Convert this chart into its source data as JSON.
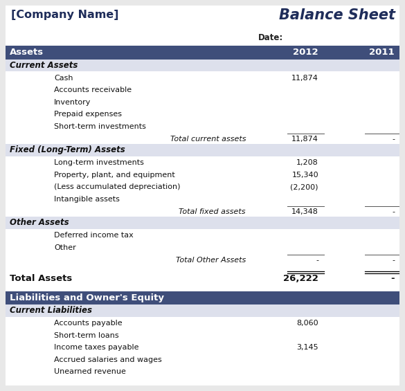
{
  "company_name": "[Company Name]",
  "title": "Balance Sheet",
  "date_label": "Date:",
  "header_bg": "#3F4E7A",
  "header_text": "#FFFFFF",
  "section_bg": "#DDE0EC",
  "body_bg": "#FFFFFF",
  "outer_bg": "#E8E8E8",
  "rows": [
    {
      "type": "section_header",
      "label": "Assets",
      "val2012": "2012",
      "val2011": "2011"
    },
    {
      "type": "subheader",
      "label": "Current Assets",
      "val2012": "",
      "val2011": ""
    },
    {
      "type": "item",
      "label": "Cash",
      "val2012": "11,874",
      "val2011": ""
    },
    {
      "type": "item",
      "label": "Accounts receivable",
      "val2012": "",
      "val2011": ""
    },
    {
      "type": "item",
      "label": "Inventory",
      "val2012": "",
      "val2011": ""
    },
    {
      "type": "item",
      "label": "Prepaid expenses",
      "val2012": "",
      "val2011": ""
    },
    {
      "type": "item",
      "label": "Short-term investments",
      "val2012": "",
      "val2011": ""
    },
    {
      "type": "total",
      "label": "Total current assets",
      "val2012": "11,874",
      "val2011": "-"
    },
    {
      "type": "subheader",
      "label": "Fixed (Long-Term) Assets",
      "val2012": "",
      "val2011": ""
    },
    {
      "type": "item",
      "label": "Long-term investments",
      "val2012": "1,208",
      "val2011": ""
    },
    {
      "type": "item",
      "label": "Property, plant, and equipment",
      "val2012": "15,340",
      "val2011": ""
    },
    {
      "type": "item",
      "label": "(Less accumulated depreciation)",
      "val2012": "(2,200)",
      "val2011": ""
    },
    {
      "type": "item",
      "label": "Intangible assets",
      "val2012": "",
      "val2011": ""
    },
    {
      "type": "total",
      "label": "Total fixed assets",
      "val2012": "14,348",
      "val2011": "-"
    },
    {
      "type": "subheader",
      "label": "Other Assets",
      "val2012": "",
      "val2011": ""
    },
    {
      "type": "item",
      "label": "Deferred income tax",
      "val2012": "",
      "val2011": ""
    },
    {
      "type": "item",
      "label": "Other",
      "val2012": "",
      "val2011": ""
    },
    {
      "type": "total",
      "label": "Total Other Assets",
      "val2012": "-",
      "val2011": "-"
    },
    {
      "type": "blank"
    },
    {
      "type": "grand_total",
      "label": "Total Assets",
      "val2012": "26,222",
      "val2011": "-"
    },
    {
      "type": "blank"
    },
    {
      "type": "section_header2",
      "label": "Liabilities and Owner's Equity",
      "val2012": "",
      "val2011": ""
    },
    {
      "type": "subheader",
      "label": "Current Liabilities",
      "val2012": "",
      "val2011": ""
    },
    {
      "type": "item",
      "label": "Accounts payable",
      "val2012": "8,060",
      "val2011": ""
    },
    {
      "type": "item",
      "label": "Short-term loans",
      "val2012": "",
      "val2011": ""
    },
    {
      "type": "item",
      "label": "Income taxes payable",
      "val2012": "3,145",
      "val2011": ""
    },
    {
      "type": "item",
      "label": "Accrued salaries and wages",
      "val2012": "",
      "val2011": ""
    },
    {
      "type": "item",
      "label": "Unearned revenue",
      "val2012": "",
      "val2011": ""
    }
  ]
}
